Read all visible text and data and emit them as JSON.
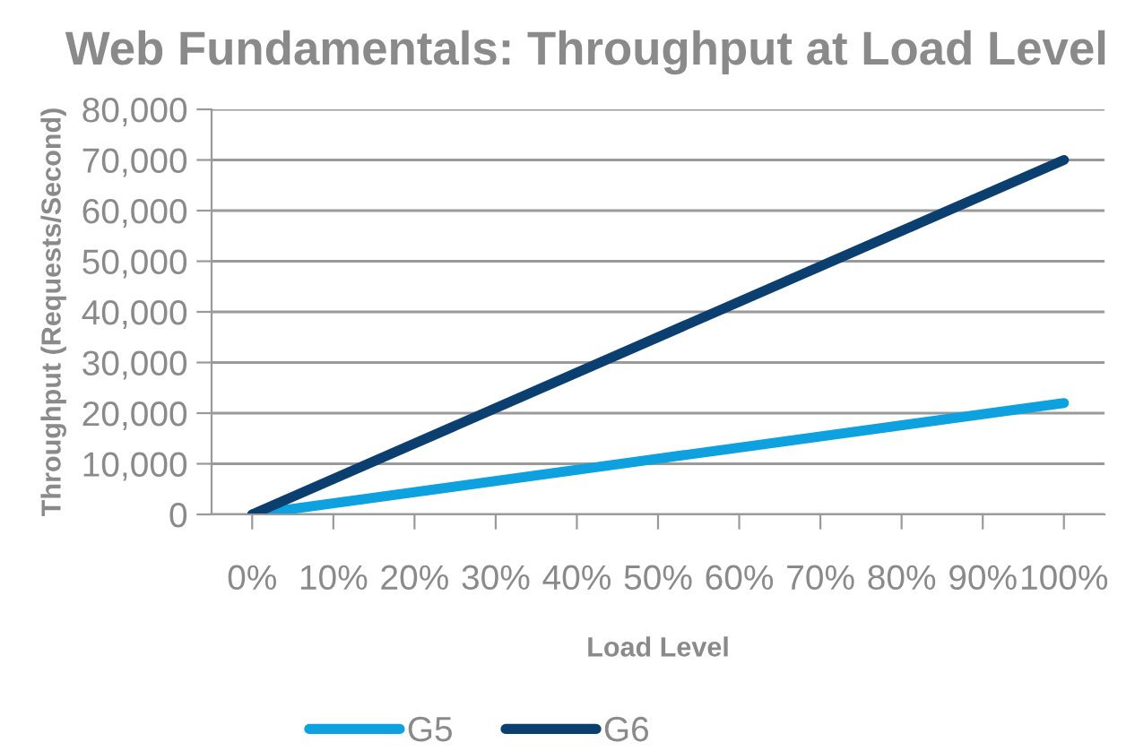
{
  "chart_data": {
    "type": "line",
    "title": "Web Fundamentals: Throughput at Load Level",
    "xlabel": "Load Level",
    "ylabel": "Throughput (Requests/Second)",
    "x": [
      0,
      100
    ],
    "series": [
      {
        "name": "G5",
        "color": "#0ea1e0",
        "values": [
          0,
          22000
        ]
      },
      {
        "name": "G6",
        "color": "#0b3f70",
        "values": [
          0,
          70000
        ]
      }
    ],
    "xlim": [
      -5,
      105
    ],
    "xticks": [
      {
        "value": 0,
        "label": "0%"
      },
      {
        "value": 10,
        "label": "10%"
      },
      {
        "value": 20,
        "label": "20%"
      },
      {
        "value": 30,
        "label": "30%"
      },
      {
        "value": 40,
        "label": "40%"
      },
      {
        "value": 50,
        "label": "50%"
      },
      {
        "value": 60,
        "label": "60%"
      },
      {
        "value": 70,
        "label": "70%"
      },
      {
        "value": 80,
        "label": "80%"
      },
      {
        "value": 90,
        "label": "90%"
      },
      {
        "value": 100,
        "label": "100%"
      }
    ],
    "ylim": [
      0,
      80000
    ],
    "yticks": [
      0,
      {
        "value": 10000,
        "label": "10,000"
      },
      {
        "value": 20000,
        "label": "20,000"
      },
      {
        "value": 30000,
        "label": "30,000"
      },
      {
        "value": 40000,
        "label": "40,000"
      },
      {
        "value": 50000,
        "label": "50,000"
      },
      {
        "value": 60000,
        "label": "60,000"
      },
      {
        "value": 70000,
        "label": "70,000"
      },
      {
        "value": 80000,
        "label": "80,000"
      }
    ],
    "grid": "y",
    "legend": "bottom",
    "marker": "none",
    "line_style": "solid"
  }
}
